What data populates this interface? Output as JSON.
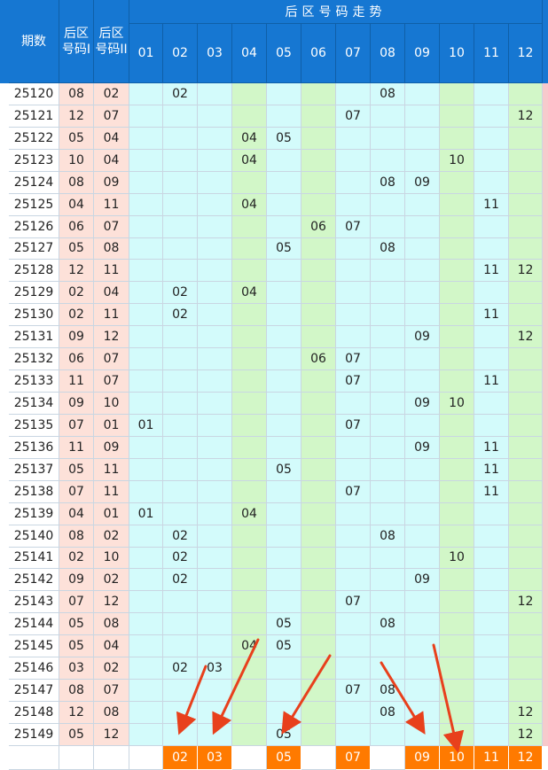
{
  "header": {
    "period_label": "期数",
    "back1_label": "后区\n号码I",
    "back2_label": "后区\n号码II",
    "trend_title": "后区号码走势"
  },
  "chart_data": {
    "type": "table",
    "columns": [
      "01",
      "02",
      "03",
      "04",
      "05",
      "06",
      "07",
      "08",
      "09",
      "10",
      "11",
      "12"
    ],
    "column_bands": [
      "cyan",
      "cyan",
      "cyan",
      "green",
      "cyan",
      "green",
      "cyan",
      "cyan",
      "cyan",
      "green",
      "cyan",
      "green"
    ],
    "rows": [
      {
        "period": "25120",
        "n1": "08",
        "n2": "02"
      },
      {
        "period": "25121",
        "n1": "12",
        "n2": "07"
      },
      {
        "period": "25122",
        "n1": "05",
        "n2": "04"
      },
      {
        "period": "25123",
        "n1": "10",
        "n2": "04"
      },
      {
        "period": "25124",
        "n1": "08",
        "n2": "09"
      },
      {
        "period": "25125",
        "n1": "04",
        "n2": "11"
      },
      {
        "period": "25126",
        "n1": "06",
        "n2": "07"
      },
      {
        "period": "25127",
        "n1": "05",
        "n2": "08"
      },
      {
        "period": "25128",
        "n1": "12",
        "n2": "11"
      },
      {
        "period": "25129",
        "n1": "02",
        "n2": "04"
      },
      {
        "period": "25130",
        "n1": "02",
        "n2": "11"
      },
      {
        "period": "25131",
        "n1": "09",
        "n2": "12"
      },
      {
        "period": "25132",
        "n1": "06",
        "n2": "07"
      },
      {
        "period": "25133",
        "n1": "11",
        "n2": "07"
      },
      {
        "period": "25134",
        "n1": "09",
        "n2": "10"
      },
      {
        "period": "25135",
        "n1": "07",
        "n2": "01"
      },
      {
        "period": "25136",
        "n1": "11",
        "n2": "09"
      },
      {
        "period": "25137",
        "n1": "05",
        "n2": "11"
      },
      {
        "period": "25138",
        "n1": "07",
        "n2": "11"
      },
      {
        "period": "25139",
        "n1": "04",
        "n2": "01"
      },
      {
        "period": "25140",
        "n1": "08",
        "n2": "02"
      },
      {
        "period": "25141",
        "n1": "02",
        "n2": "10"
      },
      {
        "period": "25142",
        "n1": "09",
        "n2": "02"
      },
      {
        "period": "25143",
        "n1": "07",
        "n2": "12"
      },
      {
        "period": "25144",
        "n1": "05",
        "n2": "08"
      },
      {
        "period": "25145",
        "n1": "05",
        "n2": "04"
      },
      {
        "period": "25146",
        "n1": "03",
        "n2": "02"
      },
      {
        "period": "25147",
        "n1": "08",
        "n2": "07"
      },
      {
        "period": "25148",
        "n1": "12",
        "n2": "08"
      },
      {
        "period": "25149",
        "n1": "05",
        "n2": "12"
      }
    ],
    "summary": [
      "",
      "02",
      "03",
      "",
      "05",
      "",
      "07",
      "",
      "09",
      "10",
      "11",
      "12"
    ],
    "annotations": [
      {
        "type": "arrow",
        "target": "02"
      },
      {
        "type": "arrow",
        "target": "03"
      },
      {
        "type": "arrow",
        "target": "05"
      },
      {
        "type": "arrow",
        "target": "09"
      },
      {
        "type": "arrow",
        "target": "10"
      }
    ]
  },
  "colors": {
    "header_blue": "#1677d2",
    "selected_pink": "#fde1d9",
    "band_cyan": "#d3fbfb",
    "band_green": "#d2f7c8",
    "highlight_orange": "#ff7a00",
    "arrow_red": "#e8401c"
  }
}
